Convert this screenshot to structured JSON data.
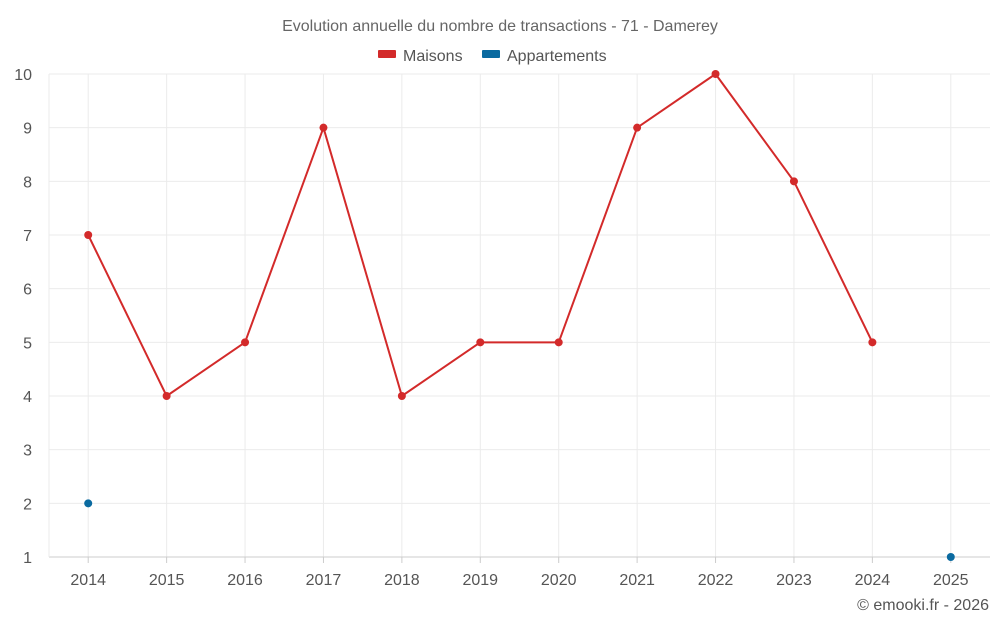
{
  "chart_data": {
    "type": "line",
    "title": "Evolution annuelle du nombre de transactions - 71 - Damerey",
    "xlabel": "",
    "ylabel": "",
    "categories": [
      "2014",
      "2015",
      "2016",
      "2017",
      "2018",
      "2019",
      "2020",
      "2021",
      "2022",
      "2023",
      "2024",
      "2025"
    ],
    "ylim": [
      1,
      10
    ],
    "yticks": [
      "1",
      "2",
      "3",
      "4",
      "5",
      "6",
      "7",
      "8",
      "9",
      "10"
    ],
    "grid": true,
    "legend_position": "top-center",
    "series": [
      {
        "name": "Maisons",
        "color": "#d32a2a",
        "values": [
          7,
          4,
          5,
          9,
          4,
          5,
          5,
          9,
          10,
          8,
          5,
          null
        ]
      },
      {
        "name": "Appartements",
        "color": "#0a6aa0",
        "values": [
          2,
          null,
          null,
          null,
          null,
          null,
          null,
          null,
          null,
          null,
          null,
          1
        ]
      }
    ],
    "credit": "© emooki.fr - 2026"
  }
}
